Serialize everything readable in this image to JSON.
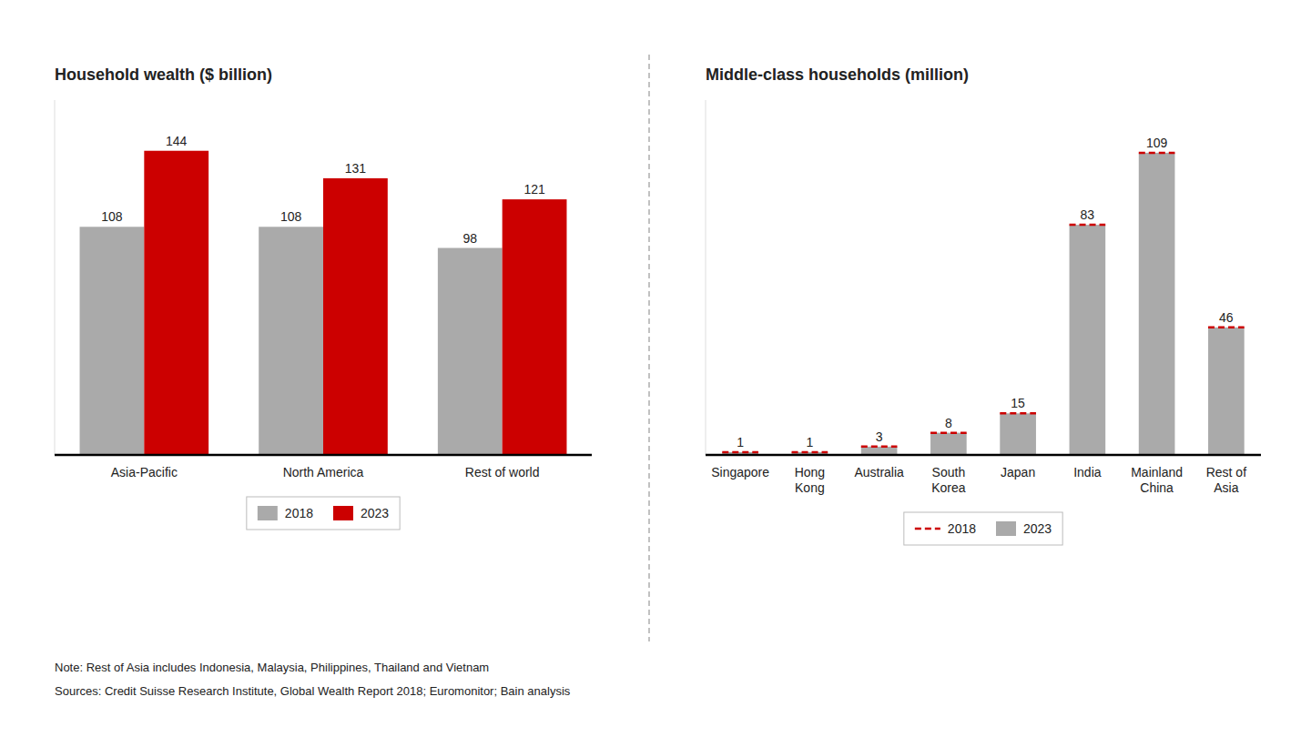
{
  "chart_data": [
    {
      "type": "bar",
      "title": "Household wealth ($ billion)",
      "categories": [
        "Asia-Pacific",
        "North America",
        "Rest of world"
      ],
      "series": [
        {
          "name": "2018",
          "color": "#aaaaaa",
          "values": [
            108,
            108,
            98
          ]
        },
        {
          "name": "2023",
          "color": "#cc0000",
          "values": [
            144,
            131,
            121
          ]
        }
      ],
      "ylim": [
        0,
        168
      ],
      "grid": false,
      "legend": "bottom",
      "data_labels": true,
      "tick_labels": "x"
    },
    {
      "type": "bar",
      "title": "Middle-class households (million)",
      "categories": [
        "Singapore",
        "Hong\nKong",
        "Australia",
        "South\nKorea",
        "Japan",
        "India",
        "Mainland\nChina",
        "Rest of\nAsia"
      ],
      "series": [
        {
          "name": "2018",
          "type": "scatter",
          "marker": "dash",
          "line_style": "dashed",
          "color": "#cc0000",
          "values": [
            1,
            1,
            3,
            8,
            15,
            83,
            109,
            46
          ]
        },
        {
          "name": "2023",
          "type": "bar",
          "color": "#aaaaaa",
          "data_labels": true,
          "values": [
            1,
            1,
            3,
            8,
            15,
            83,
            109,
            46
          ]
        }
      ],
      "ylim": [
        0,
        128
      ],
      "grid": false,
      "legend": "bottom",
      "tick_labels": "x"
    }
  ],
  "notes": [
    [
      "Note: Rest of Asia includes Indonesia, Malaysia, Philippines, Thailand and Vietnam"
    ],
    [
      "Sources: Credit Suisse Research Institute, ",
      "Global Wealth Report 2018",
      "; Euromonitor; Bain analysis"
    ]
  ]
}
